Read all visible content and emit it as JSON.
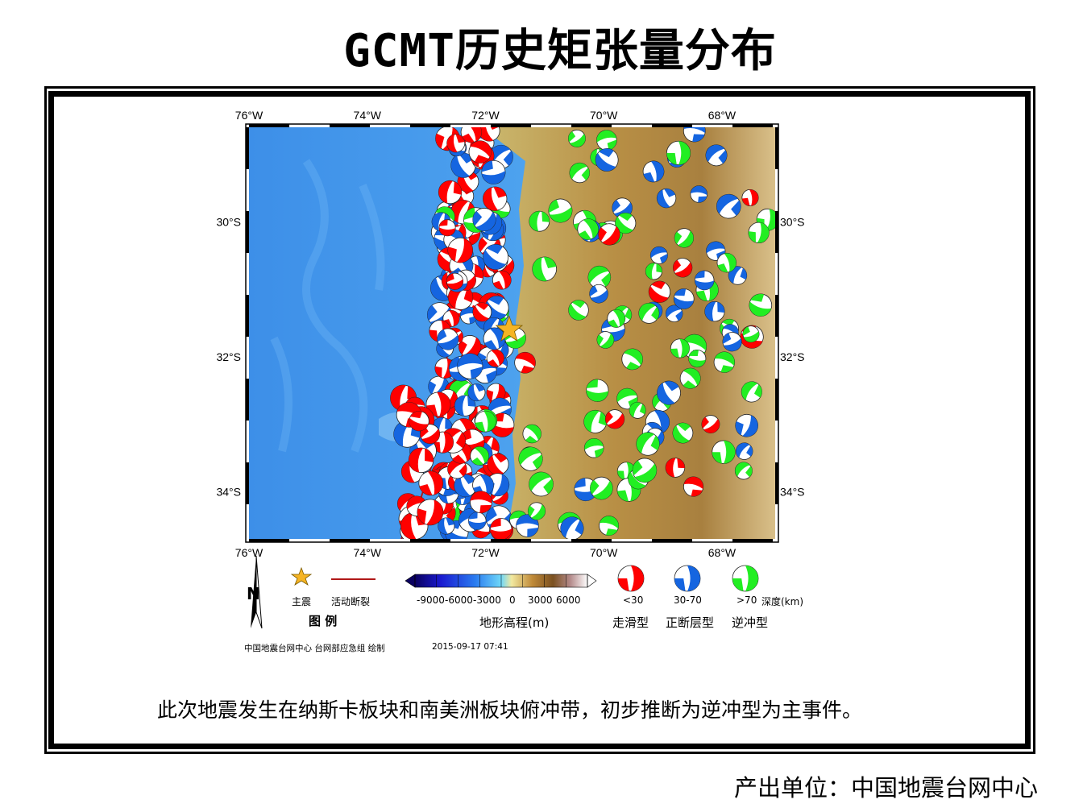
{
  "title": "GCMT历史矩张量分布",
  "map": {
    "lon_ticks": [
      "76°W",
      "74°W",
      "72°W",
      "70°W",
      "68°W"
    ],
    "lat_ticks": [
      "30°S",
      "32°S",
      "34°S"
    ],
    "lon_range": [
      -76,
      -67.1
    ],
    "lat_range": [
      -34.7,
      -28.6
    ],
    "epicenter": {
      "lon": -71.6,
      "lat": -31.6
    },
    "colors": {
      "strike_slip": "#ff0000",
      "normal": "#1565e0",
      "thrust": "#22ee22",
      "ocean": "#3b8fe6",
      "land": "#c8a65a",
      "fault": "#b01818",
      "star": "#f6b423"
    }
  },
  "legend": {
    "star_label": "主震",
    "fault_label": "活动断裂",
    "legend_title": "图    例",
    "colorbar_ticks": [
      "-9000",
      "-6000",
      "-3000",
      "0",
      "3000",
      "6000"
    ],
    "colorbar_title": "地形高程(m)",
    "depth_items": [
      {
        "depth": "<30",
        "type": "走滑型"
      },
      {
        "depth": "30-70",
        "type": "正断层型"
      },
      {
        "depth": ">70",
        "type": "逆冲型"
      }
    ],
    "depth_unit": "深度(km)"
  },
  "credit": "中国地震台网中心 台网部应急组 绘制",
  "timestamp": "2015-09-17 07:41",
  "caption": "此次地震发生在纳斯卡板块和南美洲板块俯冲带，初步推断为逆冲型为主事件。",
  "footer": "产出单位：中国地震台网中心"
}
